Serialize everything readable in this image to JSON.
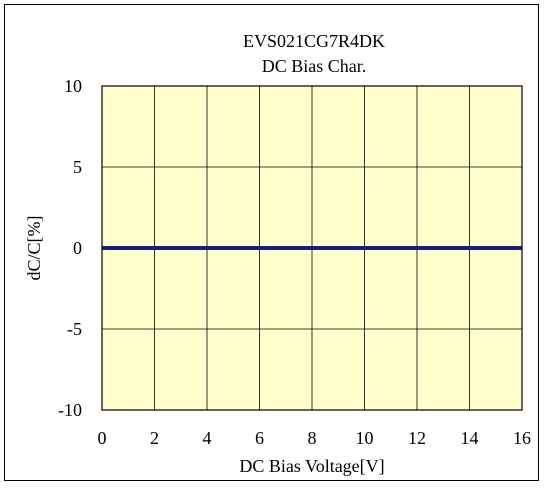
{
  "chart_data": {
    "type": "line",
    "title": "EVS021CG7R4DK",
    "subtitle": "DC Bias Char.",
    "xlabel": "DC Bias Voltage[V]",
    "ylabel": "dC/C[%]",
    "xlim": [
      0,
      16
    ],
    "ylim": [
      -10,
      10
    ],
    "x_ticks": [
      0,
      2,
      4,
      6,
      8,
      10,
      12,
      14,
      16
    ],
    "y_ticks": [
      10,
      5,
      0,
      -5,
      -10
    ],
    "grid": true,
    "series": [
      {
        "x": [
          0,
          16
        ],
        "y": [
          0,
          0
        ],
        "color": "#1a1a80"
      }
    ],
    "colors": {
      "plot_background": "#ffffcc",
      "grid": "#000000",
      "frame": "#000000"
    }
  }
}
